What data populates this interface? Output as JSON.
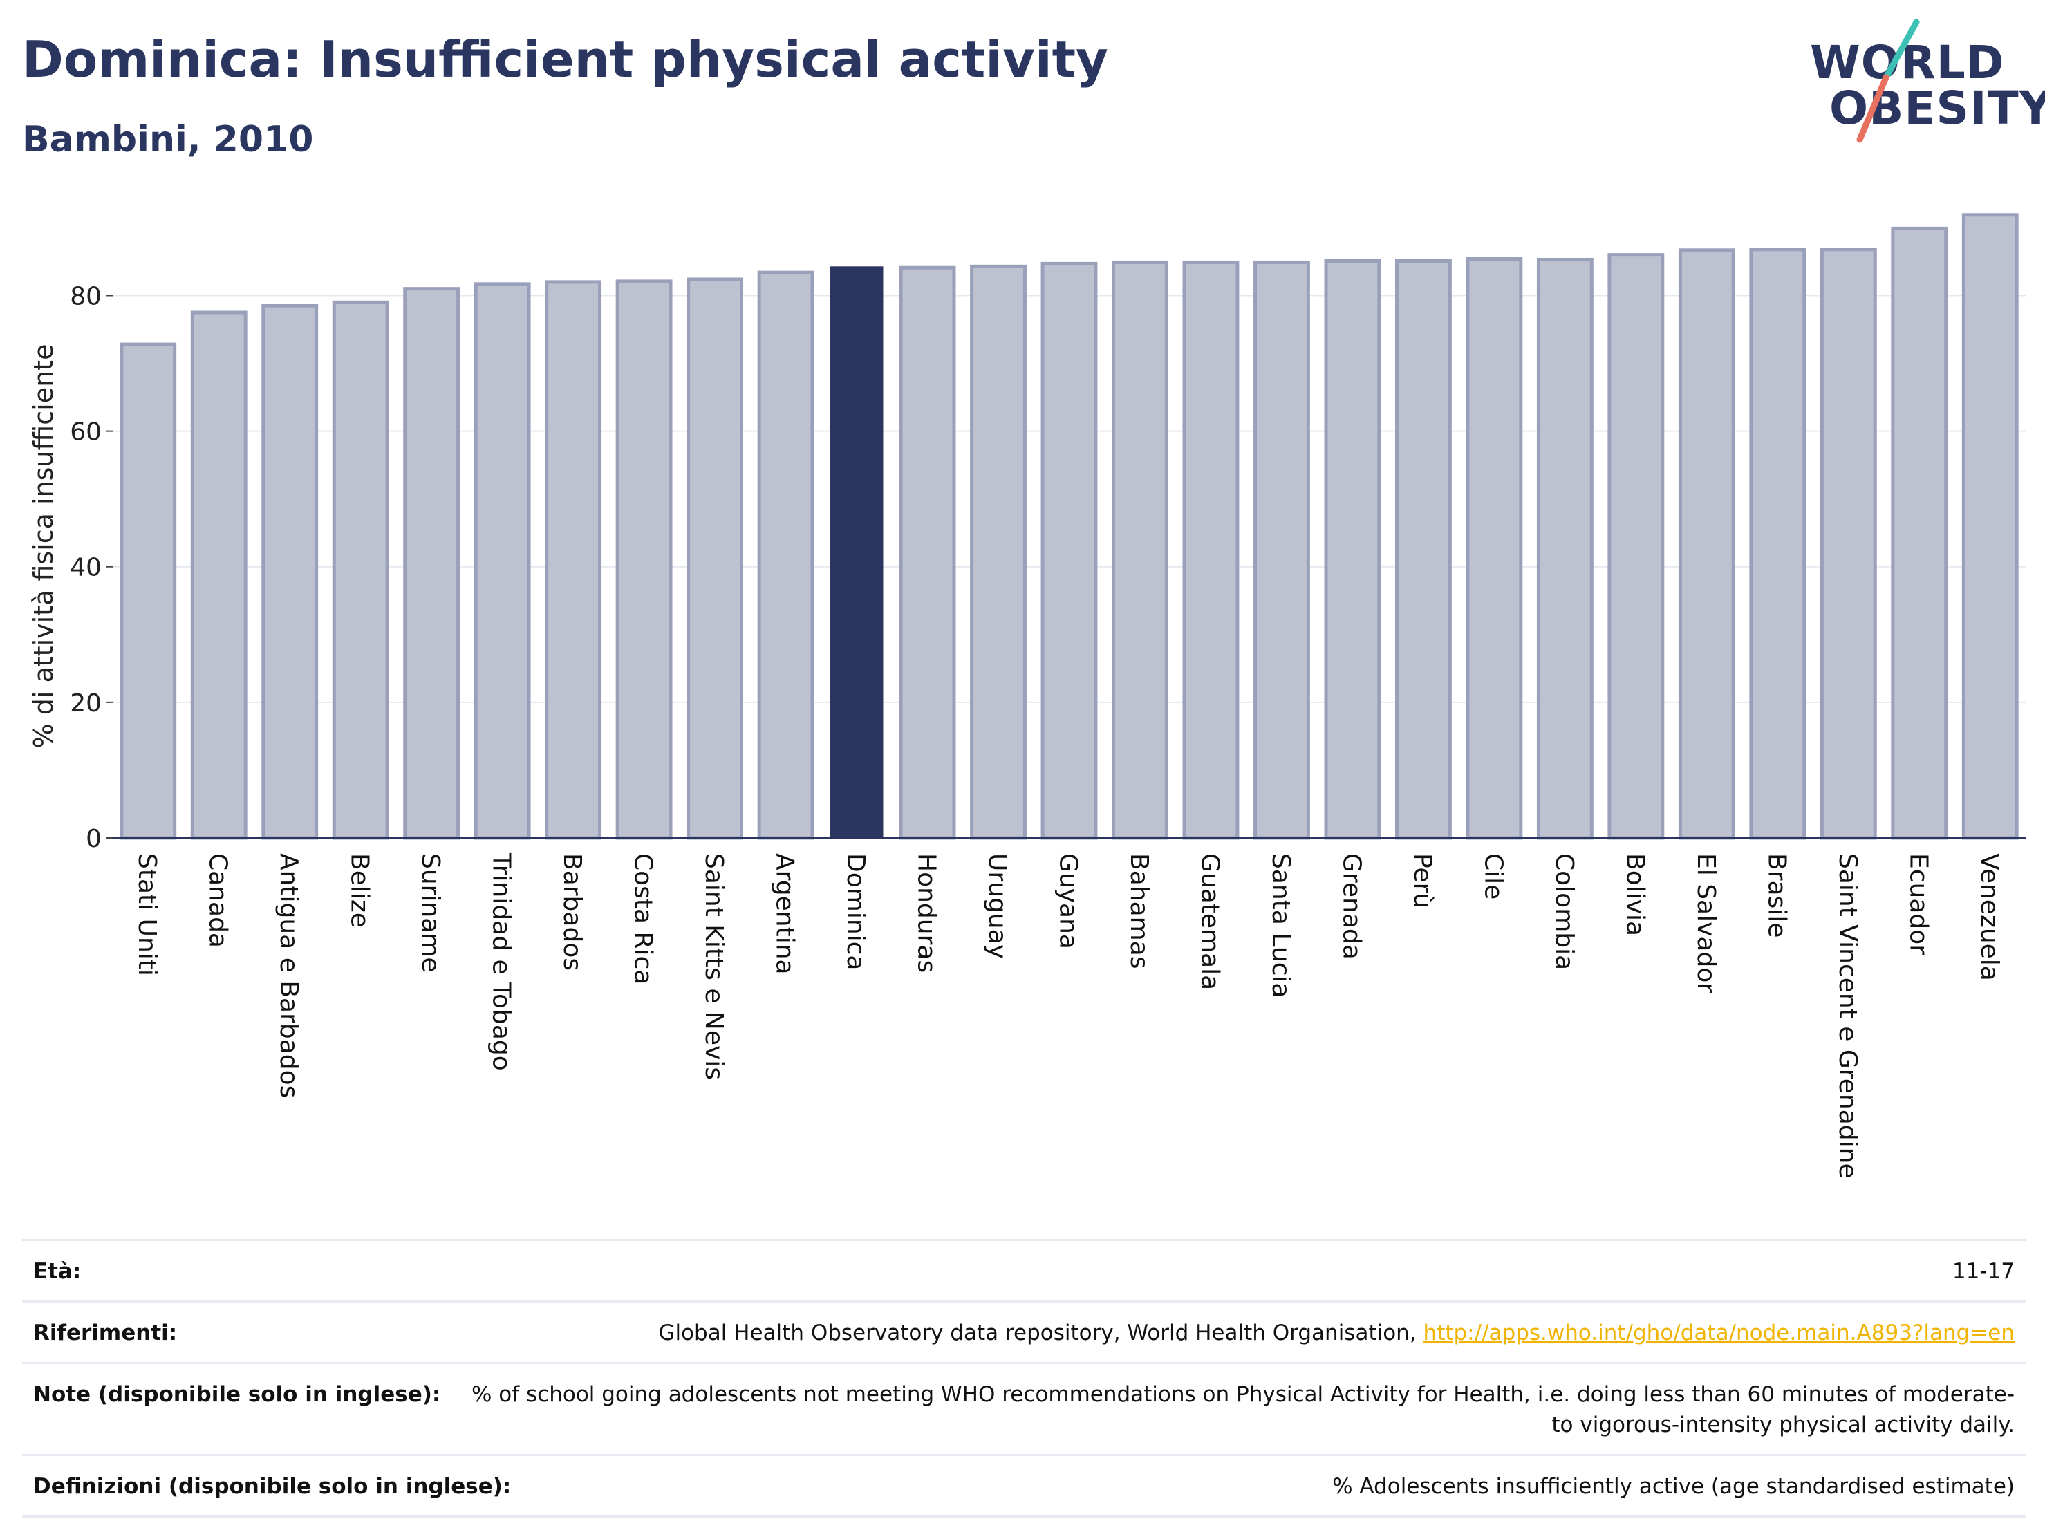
{
  "header": {
    "title": "Dominica: Insufficient physical activity",
    "subtitle": "Bambini, 2010"
  },
  "logo": {
    "line1": "WORLD",
    "line2": "OBESITY",
    "accent_colors": [
      "#3ec1b5",
      "#e8705f"
    ]
  },
  "colors": {
    "bar_default": "#bec1cf",
    "bar_default_stroke": "#9aa0ba",
    "bar_highlight": "#2b3660",
    "title": "#2b3660",
    "link": "#f0b400"
  },
  "chart_data": {
    "type": "bar",
    "title": "",
    "xlabel": "",
    "ylabel": "% di attività fisica insufficiente",
    "ylim": [
      0,
      93
    ],
    "yticks": [
      0,
      20,
      40,
      60,
      80
    ],
    "grid": true,
    "highlight": "Dominica",
    "categories": [
      "Stati Uniti",
      "Canada",
      "Antigua e Barbados",
      "Belize",
      "Suriname",
      "Trinidad e Tobago",
      "Barbados",
      "Costa Rica",
      "Saint Kitts e Nevis",
      "Argentina",
      "Dominica",
      "Honduras",
      "Uruguay",
      "Guyana",
      "Bahamas",
      "Guatemala",
      "Santa Lucia",
      "Grenada",
      "Perù",
      "Cile",
      "Colombia",
      "Bolivia",
      "El Salvador",
      "Brasile",
      "Saint Vincent e Grenadine",
      "Ecuador",
      "Venezuela"
    ],
    "values": [
      72.8,
      77.5,
      78.5,
      79.0,
      81.0,
      81.7,
      82.0,
      82.1,
      82.4,
      83.4,
      84.3,
      84.1,
      84.3,
      84.7,
      84.9,
      84.9,
      84.9,
      85.1,
      85.1,
      85.4,
      85.3,
      86.0,
      86.7,
      86.8,
      86.8,
      89.9,
      91.9
    ]
  },
  "meta": {
    "rows": [
      {
        "label": "Età:",
        "value": "11-17",
        "link": ""
      },
      {
        "label": "Riferimenti:",
        "value": "Global Health Observatory data repository, World Health Organisation, ",
        "link": "http://apps.who.int/gho/data/node.main.A893?lang=en"
      },
      {
        "label": "Note (disponibile solo in inglese):",
        "value": "% of school going adolescents not meeting WHO recommendations on Physical Activity for Health, i.e. doing less than 60 minutes of moderate- to vigorous-intensity physical activity daily.",
        "link": ""
      },
      {
        "label": "Definizioni (disponibile solo in inglese):",
        "value": "% Adolescents insufficiently active (age standardised estimate)",
        "link": ""
      }
    ]
  }
}
